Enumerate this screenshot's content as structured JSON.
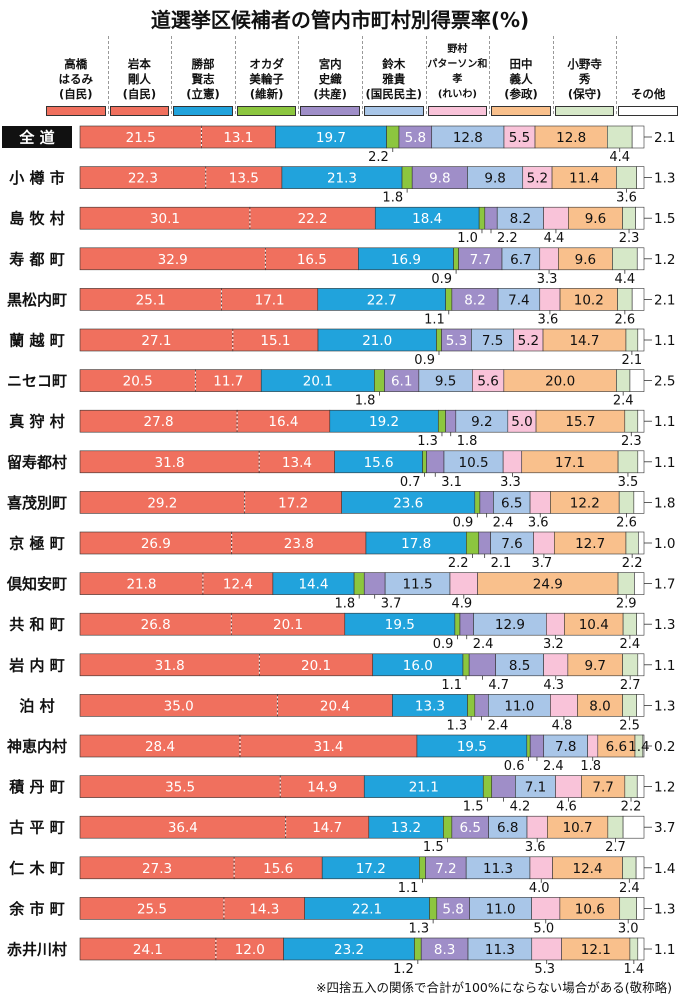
{
  "title": "道選挙区候補者の管内市町村別得票率(%)",
  "footnote": "※四捨五入の関係で合計が100%にならない場合がある(敬称略)",
  "colors": [
    "#f0705e",
    "#f0705e",
    "#21a3dc",
    "#8cc63f",
    "#9f8ec8",
    "#a9c6e8",
    "#f9c3d9",
    "#f9c08c",
    "#d6e8c8",
    "#ffffff"
  ],
  "legend": [
    {
      "label": "高橋\nはるみ\n(自民)"
    },
    {
      "label": "岩本\n剛人\n(自民)"
    },
    {
      "label": "勝部\n賢志\n(立憲)"
    },
    {
      "label": "オカダ\n美輪子\n(維新)"
    },
    {
      "label": "宮内\n史織\n(共産)"
    },
    {
      "label": "鈴木\n雅貴\n(国民民主)"
    },
    {
      "label": "野村\nパターソン和孝\n(れいわ)"
    },
    {
      "label": "田中\n義人\n(参政)"
    },
    {
      "label": "小野寺\n秀\n(保守)"
    },
    {
      "label": "その他"
    }
  ],
  "chart_data": {
    "type": "bar",
    "orientation": "horizontal",
    "stacked": true,
    "unit": "%",
    "series": [
      "高橋はるみ(自民)",
      "岩本剛人(自民)",
      "勝部賢志(立憲)",
      "オカダ美輪子(維新)",
      "宮内史織(共産)",
      "鈴木雅貴(国民民主)",
      "野村パターソン和孝(れいわ)",
      "田中義人(参政)",
      "小野寺秀(保守)",
      "その他"
    ],
    "categories": [
      "全道",
      "小樽市",
      "島牧村",
      "寿都町",
      "黒松内町",
      "蘭越町",
      "ニセコ町",
      "真狩村",
      "留寿都村",
      "喜茂別町",
      "京極町",
      "倶知安町",
      "共和町",
      "岩内町",
      "泊村",
      "神恵内村",
      "積丹町",
      "古平町",
      "仁木町",
      "余市町",
      "赤井川村"
    ],
    "rows": [
      {
        "name": "全 道",
        "values": [
          21.5,
          13.1,
          19.7,
          2.2,
          5.8,
          12.8,
          5.5,
          12.8,
          4.4,
          2.1
        ]
      },
      {
        "name": "小 樽 市",
        "values": [
          22.3,
          13.5,
          21.3,
          1.8,
          9.8,
          9.8,
          5.2,
          11.4,
          3.6,
          1.3
        ]
      },
      {
        "name": "島 牧 村",
        "values": [
          30.1,
          22.2,
          18.4,
          1.0,
          2.2,
          8.2,
          4.4,
          9.6,
          2.3,
          1.5
        ]
      },
      {
        "name": "寿 都 町",
        "values": [
          32.9,
          16.5,
          16.9,
          0.9,
          7.7,
          6.7,
          3.3,
          9.6,
          4.4,
          1.2
        ]
      },
      {
        "name": "黒松内町",
        "values": [
          25.1,
          17.1,
          22.7,
          1.1,
          8.2,
          7.4,
          3.6,
          10.2,
          2.6,
          2.1
        ]
      },
      {
        "name": "蘭 越 町",
        "values": [
          27.1,
          15.1,
          21.0,
          0.9,
          5.3,
          7.5,
          5.2,
          14.7,
          2.1,
          1.1
        ]
      },
      {
        "name": "ニセコ町",
        "values": [
          20.5,
          11.7,
          20.1,
          1.8,
          6.1,
          9.5,
          5.6,
          20.0,
          2.4,
          2.5
        ]
      },
      {
        "name": "真 狩 村",
        "values": [
          27.8,
          16.4,
          19.2,
          1.3,
          1.8,
          9.2,
          5.0,
          15.7,
          2.3,
          1.1
        ]
      },
      {
        "name": "留寿都村",
        "values": [
          31.8,
          13.4,
          15.6,
          0.7,
          3.1,
          10.5,
          3.3,
          17.1,
          3.5,
          1.1
        ]
      },
      {
        "name": "喜茂別町",
        "values": [
          29.2,
          17.2,
          23.6,
          0.9,
          2.4,
          6.5,
          3.6,
          12.2,
          2.6,
          1.8
        ]
      },
      {
        "name": "京 極 町",
        "values": [
          26.9,
          23.8,
          17.8,
          2.2,
          2.1,
          7.6,
          3.7,
          12.7,
          2.2,
          1.0
        ]
      },
      {
        "name": "倶知安町",
        "values": [
          21.8,
          12.4,
          14.4,
          1.8,
          3.7,
          11.5,
          4.9,
          24.9,
          2.9,
          1.7
        ]
      },
      {
        "name": "共 和 町",
        "values": [
          26.8,
          20.1,
          19.5,
          0.9,
          2.4,
          12.9,
          3.2,
          10.4,
          2.4,
          1.3
        ]
      },
      {
        "name": "岩 内 町",
        "values": [
          31.8,
          20.1,
          16.0,
          1.1,
          4.7,
          8.5,
          4.3,
          9.7,
          2.7,
          1.1
        ]
      },
      {
        "name": "泊 村",
        "values": [
          35.0,
          20.4,
          13.3,
          1.3,
          2.4,
          11.0,
          4.8,
          8.0,
          2.5,
          1.3
        ]
      },
      {
        "name": "神恵内村",
        "values": [
          28.4,
          31.4,
          19.5,
          0.6,
          2.4,
          7.8,
          1.8,
          6.6,
          1.4,
          0.2
        ]
      },
      {
        "name": "積 丹 町",
        "values": [
          35.5,
          14.9,
          21.1,
          1.5,
          4.2,
          7.1,
          4.6,
          7.7,
          2.2,
          1.2
        ]
      },
      {
        "name": "古 平 町",
        "values": [
          36.4,
          14.7,
          13.2,
          1.5,
          6.5,
          6.8,
          3.6,
          10.7,
          2.7,
          3.7
        ]
      },
      {
        "name": "仁 木 町",
        "values": [
          27.3,
          15.6,
          17.2,
          1.1,
          7.2,
          11.3,
          4.0,
          12.4,
          2.4,
          1.4
        ]
      },
      {
        "name": "余 市 町",
        "values": [
          25.5,
          14.3,
          22.1,
          1.3,
          5.8,
          11.0,
          5.0,
          10.6,
          3.0,
          1.3
        ]
      },
      {
        "name": "赤井川村",
        "values": [
          24.1,
          12.0,
          23.2,
          1.2,
          8.3,
          11.3,
          5.3,
          12.1,
          1.4,
          1.1
        ]
      }
    ],
    "inside_labels": [
      [
        0,
        1,
        2,
        4,
        5,
        6,
        7
      ],
      [
        0,
        1,
        2,
        4,
        5,
        6,
        7
      ],
      [
        0,
        1,
        2,
        5,
        7
      ],
      [
        0,
        1,
        2,
        4,
        5,
        7
      ],
      [
        0,
        1,
        2,
        4,
        5,
        7
      ],
      [
        0,
        1,
        2,
        4,
        5,
        6,
        7
      ],
      [
        0,
        1,
        2,
        4,
        5,
        6,
        7
      ],
      [
        0,
        1,
        2,
        5,
        6,
        7
      ],
      [
        0,
        1,
        2,
        5,
        7
      ],
      [
        0,
        1,
        2,
        5,
        7
      ],
      [
        0,
        1,
        2,
        5,
        7
      ],
      [
        0,
        1,
        2,
        5,
        7
      ],
      [
        0,
        1,
        2,
        5,
        7
      ],
      [
        0,
        1,
        2,
        5,
        7
      ],
      [
        0,
        1,
        2,
        5,
        7
      ],
      [
        0,
        1,
        2,
        5,
        7
      ],
      [
        0,
        1,
        2,
        5,
        7
      ],
      [
        0,
        1,
        2,
        4,
        5,
        7
      ],
      [
        0,
        1,
        2,
        4,
        5,
        7
      ],
      [
        0,
        1,
        2,
        4,
        5,
        7
      ],
      [
        0,
        1,
        2,
        4,
        5,
        7
      ]
    ],
    "callouts": [
      [
        3,
        8
      ],
      [
        3,
        8
      ],
      [
        3,
        4,
        6,
        8
      ],
      [
        3,
        6,
        8
      ],
      [
        3,
        6,
        8
      ],
      [
        3,
        8
      ],
      [
        3,
        8
      ],
      [
        3,
        4,
        8
      ],
      [
        3,
        4,
        6,
        8
      ],
      [
        3,
        4,
        6,
        8
      ],
      [
        3,
        4,
        6,
        8
      ],
      [
        3,
        4,
        6,
        8
      ],
      [
        3,
        4,
        6,
        8
      ],
      [
        3,
        4,
        6,
        8
      ],
      [
        3,
        4,
        6,
        8
      ],
      [
        3,
        4,
        6,
        8
      ],
      [
        3,
        4,
        6,
        8
      ],
      [
        3,
        6,
        8
      ],
      [
        3,
        6,
        8
      ],
      [
        3,
        6,
        8
      ],
      [
        3,
        6,
        8
      ]
    ],
    "extra_inline": {
      "15": [
        8
      ],
      "16": [],
      "17": []
    }
  }
}
